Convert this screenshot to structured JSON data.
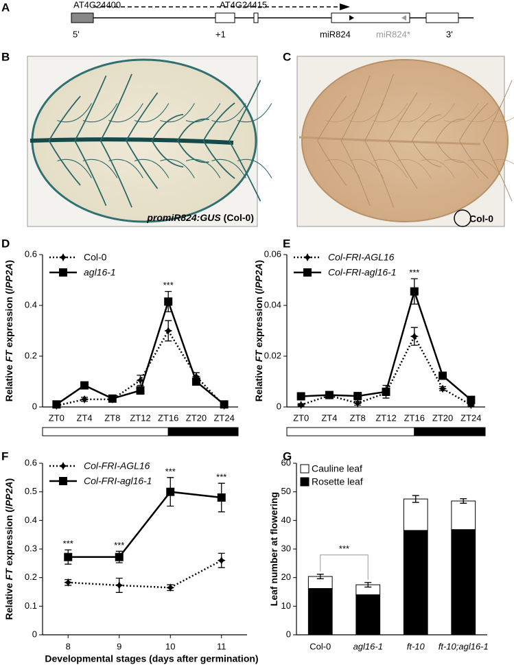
{
  "panel_labels": [
    "A",
    "B",
    "C",
    "D",
    "E",
    "F",
    "G"
  ],
  "gene_model": {
    "labels": [
      "AT4G24400",
      "AT4G24415",
      "5'",
      "+1",
      "miR824",
      "miR824*",
      "3'"
    ]
  },
  "images": [
    {
      "caption_italic": "promiR824:GUS",
      "caption": "(Col-0)"
    },
    {
      "caption": "Col-0"
    }
  ],
  "chart_data": [
    {
      "type": "line",
      "categories": [
        "ZT0",
        "ZT4",
        "ZT8",
        "ZT12",
        "ZT16",
        "ZT20",
        "ZT24"
      ],
      "ylim": [
        0,
        0.6
      ],
      "yticks": [
        0,
        0.2,
        0.4,
        0.6
      ],
      "ylabel_parts": [
        "Relative",
        "FT",
        "expression (/",
        "PP2A",
        ")"
      ],
      "ylabel_italic": [
        false,
        true,
        false,
        true,
        false
      ],
      "legend": "upper left",
      "photoperiod_bar": true,
      "series": [
        {
          "name": "Col-0",
          "color": "#000000",
          "line_style": "dotted",
          "marker": "diamond",
          "italic": false,
          "values": [
            0.005,
            0.03,
            0.03,
            0.105,
            0.3,
            0.12,
            0.005
          ],
          "errors": [
            0.003,
            0.008,
            0.005,
            0.02,
            0.04,
            0.015,
            0.003
          ]
        },
        {
          "name": "agl16-1",
          "color": "#000000",
          "line_style": "solid",
          "marker": "square",
          "italic": true,
          "values": [
            0.01,
            0.085,
            0.033,
            0.065,
            0.415,
            0.1,
            0.01
          ],
          "errors": [
            0.005,
            0.01,
            0.005,
            0.015,
            0.04,
            0.012,
            0.004
          ]
        }
      ],
      "significance": [
        null,
        null,
        null,
        null,
        "***",
        null,
        null
      ]
    },
    {
      "type": "line",
      "categories": [
        "ZT0",
        "ZT4",
        "ZT8",
        "ZT12",
        "ZT16",
        "ZT20",
        "ZT24"
      ],
      "ylim": [
        0,
        0.06
      ],
      "yticks": [
        0,
        0.02,
        0.04,
        0.06
      ],
      "ylabel_parts": [
        "Relative",
        "FT",
        "expression (/",
        "PP2A",
        ")"
      ],
      "ylabel_italic": [
        false,
        true,
        false,
        true,
        false
      ],
      "legend": "upper left",
      "photoperiod_bar": true,
      "series": [
        {
          "name": "Col-FRI-AGL16",
          "color": "#000000",
          "line_style": "dotted",
          "marker": "diamond",
          "italic": true,
          "values": [
            0.0008,
            0.0045,
            0.0015,
            0.0055,
            0.0278,
            0.0072,
            0.0008
          ],
          "errors": [
            0.0005,
            0.0008,
            0.0008,
            0.001,
            0.0035,
            0.0008,
            0.0005
          ]
        },
        {
          "name": "Col-FRI-agl16-1",
          "color": "#000000",
          "line_style": "solid",
          "marker": "square",
          "italic": true,
          "values": [
            0.0042,
            0.0047,
            0.0043,
            0.006,
            0.0455,
            0.0123,
            0.0028
          ],
          "errors": [
            0.0008,
            0.0008,
            0.001,
            0.0025,
            0.005,
            0.001,
            0.001
          ]
        }
      ],
      "significance": [
        null,
        null,
        null,
        null,
        "***",
        null,
        null
      ]
    },
    {
      "type": "line",
      "x": [
        8,
        9,
        10,
        11
      ],
      "xlim": [
        7.5,
        11.5
      ],
      "xticks": [
        8,
        9,
        10,
        11
      ],
      "xlabel": "Developmental stages (days after germination)",
      "ylim": [
        0,
        0.6
      ],
      "yticks": [
        0,
        0.1,
        0.2,
        0.3,
        0.4,
        0.5,
        0.6
      ],
      "ylabel_parts": [
        "Relative",
        "FT",
        "expression (/",
        "PP2A",
        ")"
      ],
      "ylabel_italic": [
        false,
        true,
        false,
        true,
        false
      ],
      "legend": "upper left",
      "series": [
        {
          "name": "Col-FRI-AGL16",
          "color": "#000000",
          "line_style": "dotted",
          "marker": "diamond",
          "italic": true,
          "values": [
            0.183,
            0.173,
            0.165,
            0.26
          ],
          "errors": [
            0.01,
            0.025,
            0.01,
            0.025
          ]
        },
        {
          "name": "Col-FRI-agl16-1",
          "color": "#000000",
          "line_style": "solid",
          "marker": "square",
          "italic": true,
          "values": [
            0.272,
            0.272,
            0.5,
            0.48
          ],
          "errors": [
            0.025,
            0.02,
            0.05,
            0.05
          ]
        }
      ],
      "significance": [
        "***",
        "***",
        "***",
        "***"
      ]
    },
    {
      "type": "bar",
      "stacked": true,
      "categories": [
        "Col-0",
        "agl16-1",
        "ft-10",
        "ft-10;agl16-1"
      ],
      "category_italic": [
        false,
        true,
        true,
        true
      ],
      "ylim": [
        0,
        60
      ],
      "yticks": [
        0,
        10,
        20,
        30,
        40,
        50,
        60
      ],
      "ylabel_parts": [
        "Leaf number at flowering"
      ],
      "ylabel_italic": [
        false
      ],
      "legend": "upper left",
      "series": [
        {
          "name": "Rosette leaf",
          "color": "#000000",
          "values": [
            16.2,
            14,
            36.5,
            36.8
          ],
          "errors": [
            1.3,
            1.3,
            1.8,
            2
          ]
        },
        {
          "name": "Cauline leaf",
          "color": "#ffffff",
          "values": [
            4.2,
            3.5,
            11,
            10
          ],
          "errors": [
            0.8,
            0.8,
            1.2,
            0.8
          ]
        }
      ],
      "comparison": {
        "indices": [
          0,
          1
        ],
        "label": "***"
      }
    }
  ]
}
